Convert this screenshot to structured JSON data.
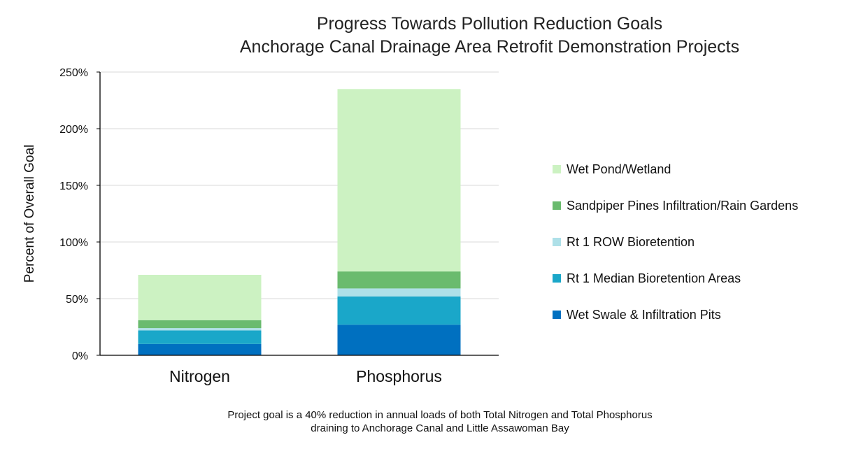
{
  "chart_data": {
    "type": "bar",
    "stacked": true,
    "title": [
      "Progress Towards Pollution Reduction Goals",
      "Anchorage Canal Drainage Area Retrofit Demonstration Projects"
    ],
    "ylabel": "Percent of Overall Goal",
    "xlabel": "",
    "categories": [
      "Nitrogen",
      "Phosphorus"
    ],
    "ylim": [
      0,
      250
    ],
    "yticks": [
      0,
      50,
      100,
      150,
      200,
      250
    ],
    "ytick_labels": [
      "0%",
      "50%",
      "100%",
      "150%",
      "200%",
      "250%"
    ],
    "grid": true,
    "legend_position": "right",
    "series": [
      {
        "name": "Wet Swale & Infiltration Pits",
        "color": "#0070c0",
        "values": [
          10,
          27
        ]
      },
      {
        "name": "Rt 1 Median Bioretention Areas",
        "color": "#1aa7c9",
        "values": [
          12,
          25
        ]
      },
      {
        "name": "Rt 1 ROW Bioretention",
        "color": "#aee0e8",
        "values": [
          2,
          7
        ]
      },
      {
        "name": "Sandpiper Pines Infiltration/Rain Gardens",
        "color": "#6abb6e",
        "values": [
          7,
          15
        ]
      },
      {
        "name": "Wet Pond/Wetland",
        "color": "#ccf2c2",
        "values": [
          40,
          161
        ]
      }
    ]
  },
  "footnote": [
    "Project goal is a 40% reduction in annual loads of both Total Nitrogen and Total Phosphorus",
    "draining to Anchorage Canal and Little Assawoman Bay"
  ]
}
